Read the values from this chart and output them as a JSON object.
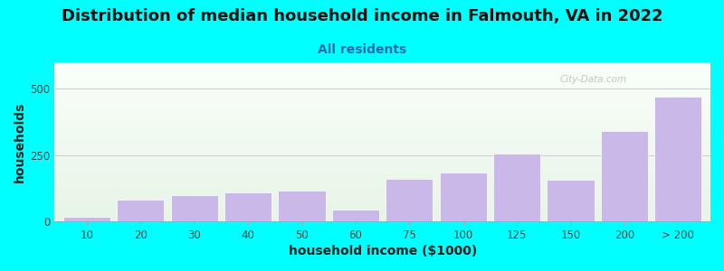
{
  "title": "Distribution of median household income in Falmouth, VA in 2022",
  "subtitle": "All residents",
  "xlabel": "household income ($1000)",
  "ylabel": "households",
  "bar_color": "#c9b8e8",
  "bar_edgecolor": "#ffffff",
  "background_color": "#00ffff",
  "categories": [
    "10",
    "20",
    "30",
    "40",
    "50",
    "60",
    "75",
    "100",
    "125",
    "150",
    "200",
    "> 200"
  ],
  "values": [
    15,
    80,
    100,
    110,
    115,
    45,
    160,
    185,
    255,
    155,
    340,
    470
  ],
  "ylim": [
    0,
    600
  ],
  "yticks": [
    0,
    250,
    500
  ],
  "title_fontsize": 13,
  "subtitle_fontsize": 10,
  "axis_label_fontsize": 10,
  "tick_fontsize": 8.5,
  "watermark_text": "City-Data.com"
}
